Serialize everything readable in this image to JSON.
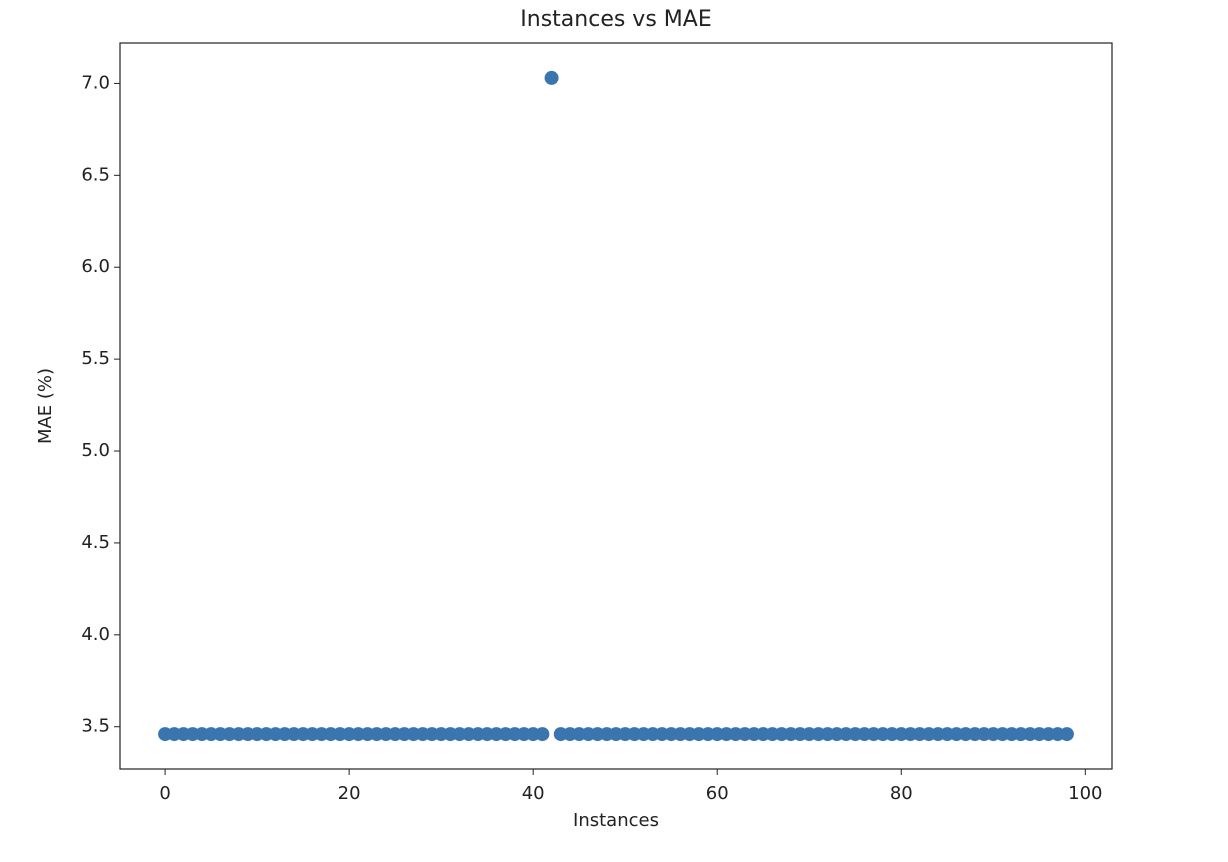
{
  "chart_data": {
    "type": "scatter",
    "title": "Instances vs MAE",
    "x_label": "Instances",
    "y_label": "MAE (%)",
    "color": "#3b75af",
    "x": [
      0,
      1,
      2,
      3,
      4,
      5,
      6,
      7,
      8,
      9,
      10,
      11,
      12,
      13,
      14,
      15,
      16,
      17,
      18,
      19,
      20,
      21,
      22,
      23,
      24,
      25,
      26,
      27,
      28,
      29,
      30,
      31,
      32,
      33,
      34,
      35,
      36,
      37,
      38,
      39,
      40,
      41,
      42,
      43,
      44,
      45,
      46,
      47,
      48,
      49,
      50,
      51,
      52,
      53,
      54,
      55,
      56,
      57,
      58,
      59,
      60,
      61,
      62,
      63,
      64,
      65,
      66,
      67,
      68,
      69,
      70,
      71,
      72,
      73,
      74,
      75,
      76,
      77,
      78,
      79,
      80,
      81,
      82,
      83,
      84,
      85,
      86,
      87,
      88,
      89,
      90,
      91,
      92,
      93,
      94,
      95,
      96,
      97,
      98
    ],
    "values": [
      3.46,
      3.46,
      3.46,
      3.46,
      3.46,
      3.46,
      3.46,
      3.46,
      3.46,
      3.46,
      3.46,
      3.46,
      3.46,
      3.46,
      3.46,
      3.46,
      3.46,
      3.46,
      3.46,
      3.46,
      3.46,
      3.46,
      3.46,
      3.46,
      3.46,
      3.46,
      3.46,
      3.46,
      3.46,
      3.46,
      3.46,
      3.46,
      3.46,
      3.46,
      3.46,
      3.46,
      3.46,
      3.46,
      3.46,
      3.46,
      3.46,
      3.46,
      7.03,
      3.46,
      3.46,
      3.46,
      3.46,
      3.46,
      3.46,
      3.46,
      3.46,
      3.46,
      3.46,
      3.46,
      3.46,
      3.46,
      3.46,
      3.46,
      3.46,
      3.46,
      3.46,
      3.46,
      3.46,
      3.46,
      3.46,
      3.46,
      3.46,
      3.46,
      3.46,
      3.46,
      3.46,
      3.46,
      3.46,
      3.46,
      3.46,
      3.46,
      3.46,
      3.46,
      3.46,
      3.46,
      3.46,
      3.46,
      3.46,
      3.46,
      3.46,
      3.46,
      3.46,
      3.46,
      3.46,
      3.46,
      3.46,
      3.46,
      3.46,
      3.46,
      3.46,
      3.46,
      3.46,
      3.46,
      3.46
    ],
    "xlim": [
      -4.9,
      102.9
    ],
    "xticks": [
      0,
      20,
      40,
      60,
      80,
      100
    ],
    "ylim": [
      3.27,
      7.22
    ],
    "yticks": [
      3.5,
      {
        "value": 4,
        "label": "4.0"
      },
      4.5,
      {
        "value": 5,
        "label": "5.0"
      },
      5.5,
      {
        "value": 6,
        "label": "6.0"
      },
      6.5,
      {
        "value": 7,
        "label": "7.0"
      }
    ],
    "grid": false
  }
}
